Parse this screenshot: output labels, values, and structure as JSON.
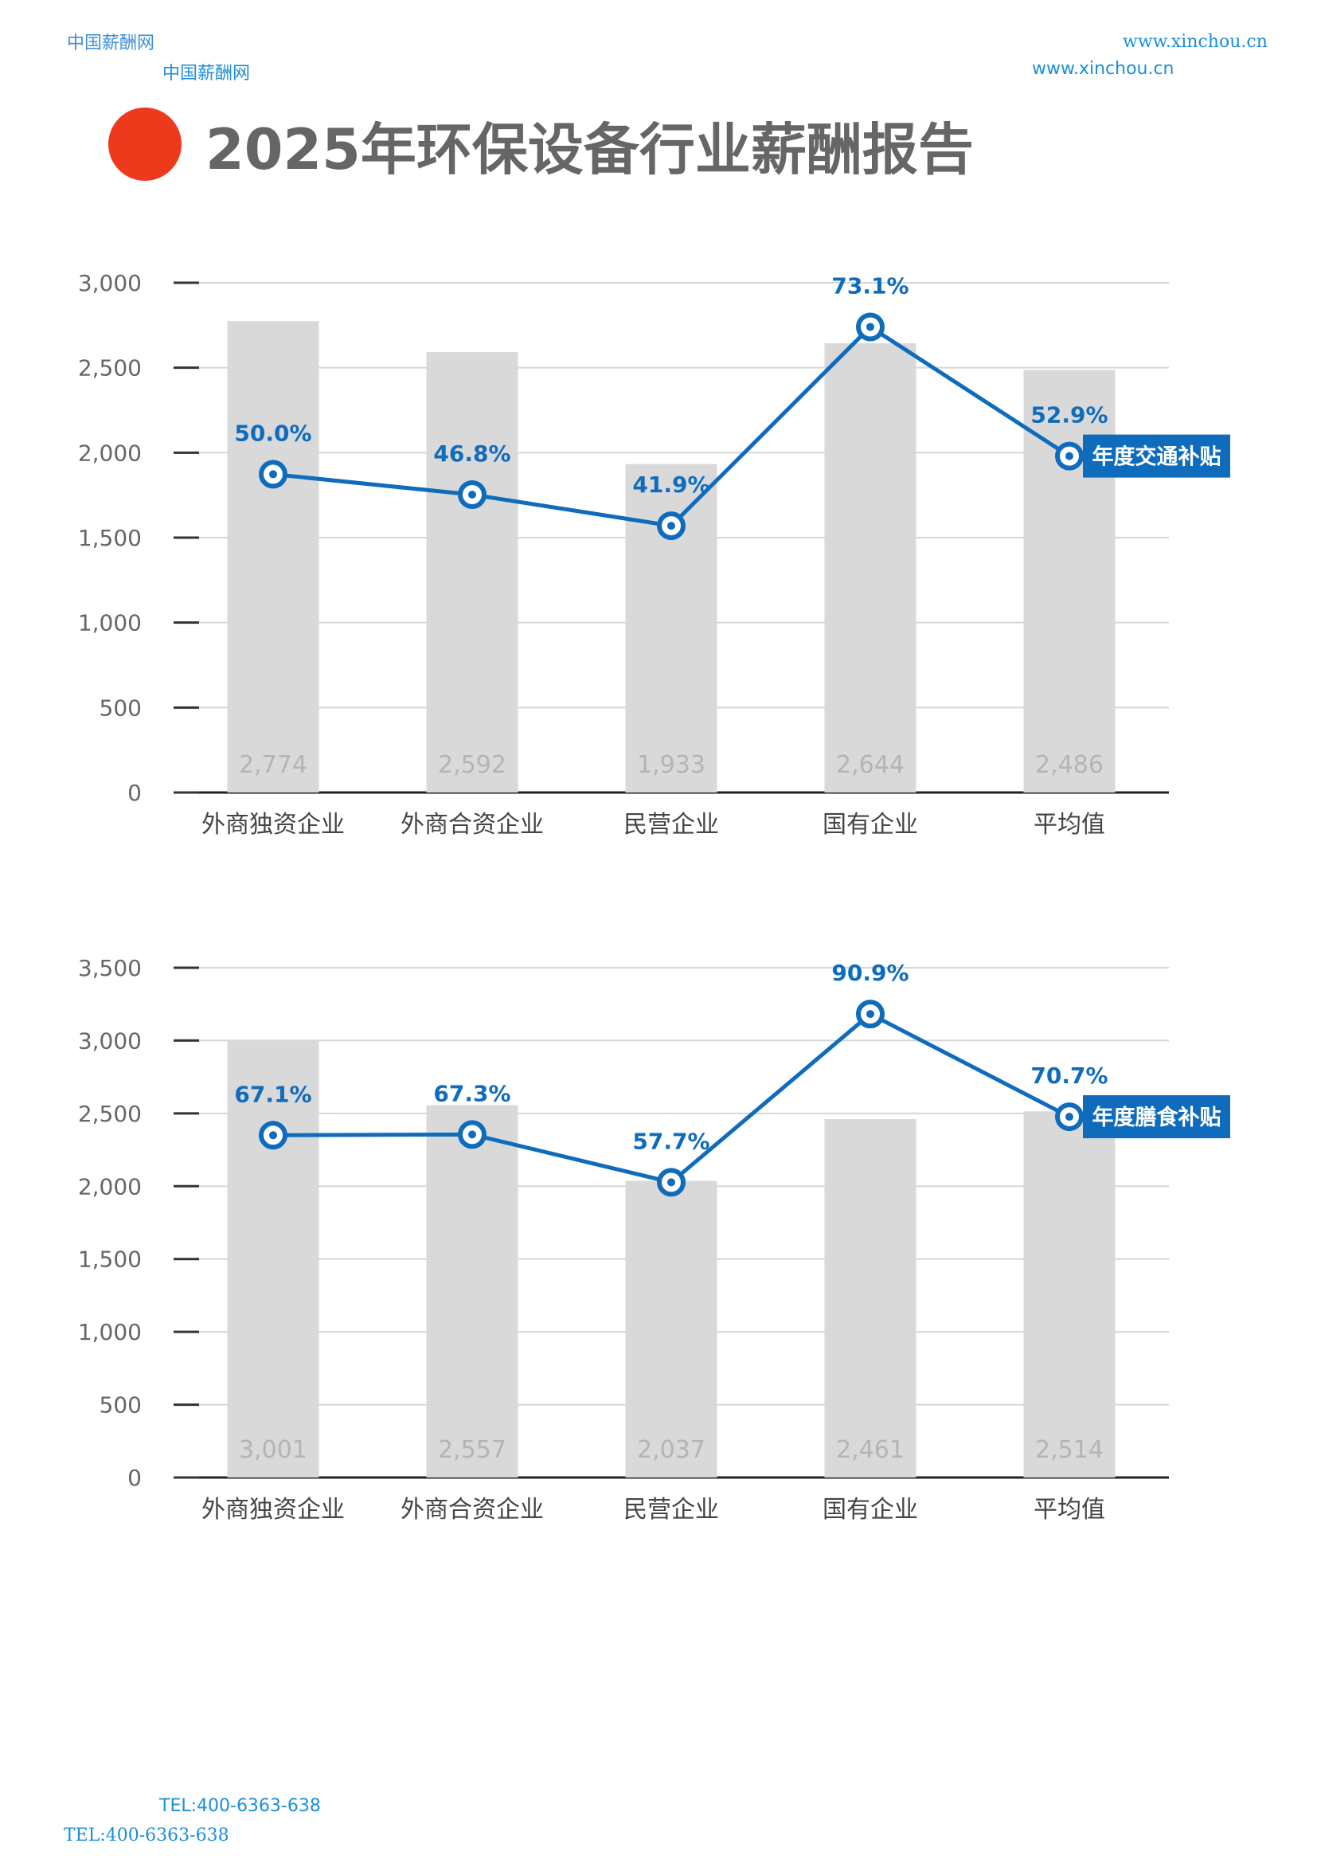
{
  "header": {
    "site_name_1": "中国薪酬网",
    "site_name_2": "中国薪酬网",
    "url_1": "www.xinchou.cn",
    "url_2": "www.xinchou.cn"
  },
  "title": "2025年环保设备行业薪酬报告",
  "footer": {
    "tel_1": "TEL:400-6363-638",
    "tel_2": "TEL:400-6363-638"
  },
  "colors": {
    "accent_red": "#ee3a1c",
    "line_blue": "#0f6cbd",
    "bar_gray": "#d9d9d9"
  },
  "chart_data": [
    {
      "type": "bar",
      "categories": [
        "外商独资企业",
        "外商合资企业",
        "民营企业",
        "国有企业",
        "平均值"
      ],
      "ylim": [
        0,
        3000
      ],
      "yticks": [
        0,
        500,
        1000,
        1500,
        2000,
        2500,
        3000
      ],
      "ytick_labels": [
        "0",
        "500",
        "1,000",
        "1,500",
        "2,000",
        "2,500",
        "3,000"
      ],
      "grid": true,
      "series": [
        {
          "kind": "bar",
          "values": [
            2774,
            2592,
            1933,
            2644,
            2486
          ],
          "value_labels": [
            "2,774",
            "2,592",
            "1,933",
            "2,644",
            "2,486"
          ]
        },
        {
          "kind": "line",
          "name": "年度交通补贴",
          "values": [
            1873,
            1753,
            1570,
            2740,
            1980
          ],
          "value_labels": [
            "50.0%",
            "46.8%",
            "41.9%",
            "73.1%",
            "52.9%"
          ]
        }
      ]
    },
    {
      "type": "bar",
      "categories": [
        "外商独资企业",
        "外商合资企业",
        "民营企业",
        "国有企业",
        "平均值"
      ],
      "ylim": [
        0,
        3500
      ],
      "yticks": [
        0,
        500,
        1000,
        1500,
        2000,
        2500,
        3000,
        3500
      ],
      "ytick_labels": [
        "0",
        "500",
        "1,000",
        "1,500",
        "2,000",
        "2,500",
        "3,000",
        "3,500"
      ],
      "grid": true,
      "series": [
        {
          "kind": "bar",
          "values": [
            3001,
            2557,
            2037,
            2461,
            2514
          ],
          "value_labels": [
            "3,001",
            "2,557",
            "2,037",
            "2,461",
            "2,514"
          ]
        },
        {
          "kind": "line",
          "name": "年度膳食补贴",
          "values": [
            2350,
            2355,
            2027,
            3182,
            2477
          ],
          "value_labels": [
            "67.1%",
            "67.3%",
            "57.7%",
            "90.9%",
            "70.7%"
          ]
        }
      ]
    }
  ]
}
